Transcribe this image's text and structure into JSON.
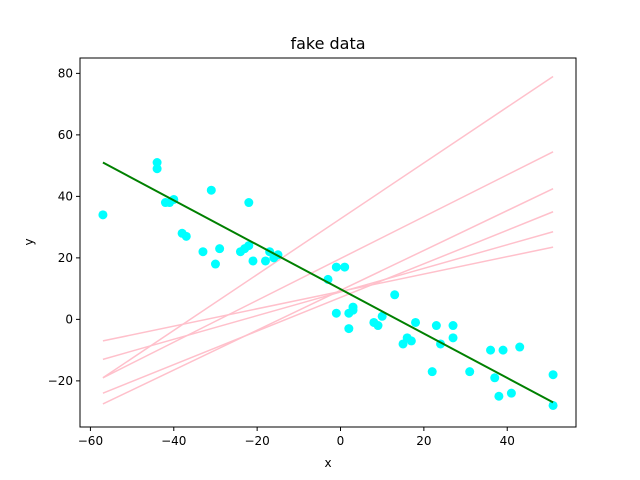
{
  "chart_data": {
    "type": "scatter",
    "title": "fake data",
    "xlabel": "x",
    "ylabel": "y",
    "xlim": [
      -62.5,
      56.5
    ],
    "ylim": [
      -35,
      85
    ],
    "xticks": [
      -60,
      -40,
      -20,
      0,
      20,
      40
    ],
    "yticks": [
      -20,
      0,
      20,
      40,
      60,
      80
    ],
    "grid": false,
    "colors": {
      "points": "#00ffff",
      "fit_line": "#008000",
      "sample_lines": "#ffc0cb",
      "axes": "#000000"
    },
    "points": {
      "x": [
        -57,
        -44,
        -44,
        -42,
        -41,
        -40,
        -38,
        -37,
        -33,
        -31,
        -30,
        -29,
        -24,
        -23,
        -22,
        -22,
        -21,
        -18,
        -17,
        -16,
        -15,
        -3,
        -1,
        -1,
        1,
        2,
        2,
        3,
        3,
        8,
        9,
        10,
        13,
        15,
        16,
        17,
        18,
        22,
        23,
        24,
        27,
        27,
        31,
        36,
        37,
        38,
        39,
        41,
        43,
        51,
        51
      ],
      "y": [
        34,
        51,
        49,
        38,
        38,
        39,
        28,
        27,
        22,
        42,
        18,
        23,
        22,
        23,
        24,
        38,
        19,
        19,
        22,
        20,
        21,
        13,
        17,
        2,
        17,
        -3,
        2,
        3,
        4,
        -1,
        -2,
        1,
        8,
        -8,
        -6,
        -7,
        -1,
        -17,
        -2,
        -8,
        -2,
        -6,
        -17,
        -10,
        -19,
        -25,
        -10,
        -24,
        -9,
        -18,
        -28
      ]
    },
    "fit_line": {
      "x": [
        -57,
        51
      ],
      "y": [
        51,
        -27
      ]
    },
    "sample_lines": [
      {
        "x": [
          -57,
          51
        ],
        "y": [
          -19,
          79
        ]
      },
      {
        "x": [
          -57,
          51
        ],
        "y": [
          -19,
          54.5
        ]
      },
      {
        "x": [
          -57,
          51
        ],
        "y": [
          -27.5,
          42.5
        ]
      },
      {
        "x": [
          -57,
          51
        ],
        "y": [
          -24,
          35
        ]
      },
      {
        "x": [
          -57,
          51
        ],
        "y": [
          -13,
          28.5
        ]
      },
      {
        "x": [
          -57,
          51
        ],
        "y": [
          -7,
          23.5
        ]
      }
    ]
  }
}
